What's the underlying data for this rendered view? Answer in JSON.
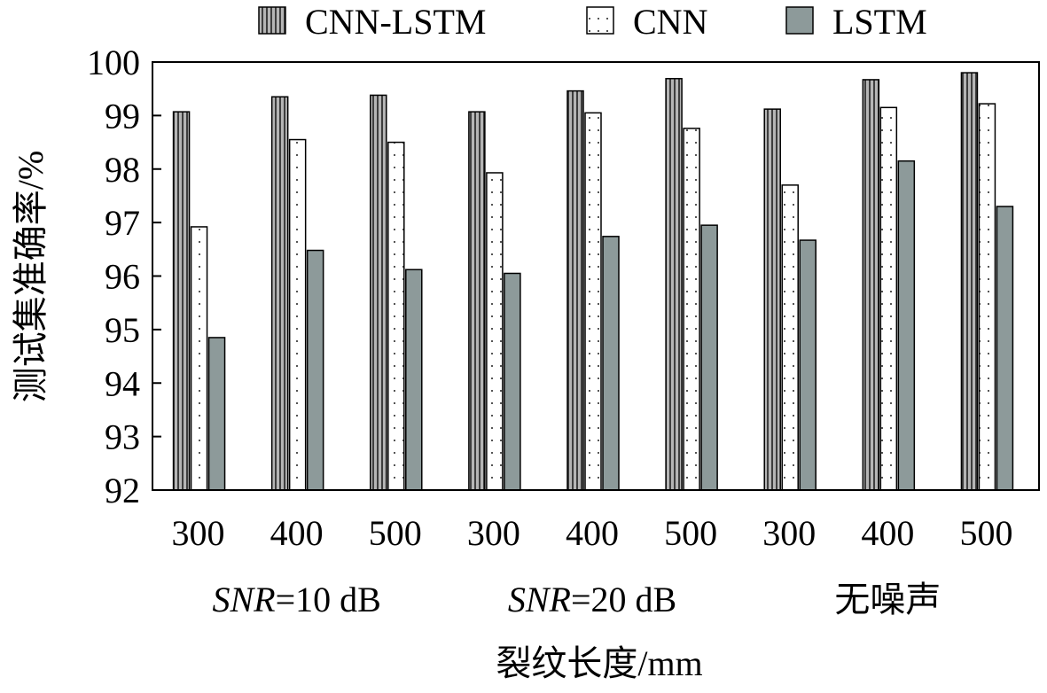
{
  "chart_data": {
    "type": "bar",
    "categories": [
      "300",
      "400",
      "500",
      "300",
      "400",
      "500",
      "300",
      "400",
      "500"
    ],
    "groups": [
      {
        "label_italic": "SNR",
        "label_rest": "=10 dB"
      },
      {
        "label_italic": "SNR",
        "label_rest": "=20 dB"
      },
      {
        "label_italic": "",
        "label_rest": "无噪声"
      }
    ],
    "series": [
      {
        "name": "CNN-LSTM",
        "pattern": "vertical-stripes",
        "color": "#7a7a7a",
        "values": [
          99.07,
          99.35,
          99.38,
          99.07,
          99.46,
          99.69,
          99.12,
          99.67,
          99.8
        ]
      },
      {
        "name": "CNN",
        "pattern": "dots",
        "color": "#ffffff",
        "values": [
          96.92,
          98.55,
          98.5,
          97.93,
          99.05,
          98.76,
          97.7,
          99.15,
          99.22
        ]
      },
      {
        "name": "LSTM",
        "pattern": "solid-gray",
        "color": "#8d9a9a",
        "values": [
          94.85,
          96.48,
          96.12,
          96.05,
          96.74,
          96.95,
          96.67,
          98.15,
          97.3
        ]
      }
    ],
    "xlabel": "裂纹长度/mm",
    "ylabel": "测试集准确率/%",
    "ylim": [
      92,
      100
    ],
    "yticks": [
      "92",
      "93",
      "94",
      "95",
      "96",
      "97",
      "98",
      "99",
      "100"
    ],
    "grid": false,
    "legend_position": "top"
  }
}
